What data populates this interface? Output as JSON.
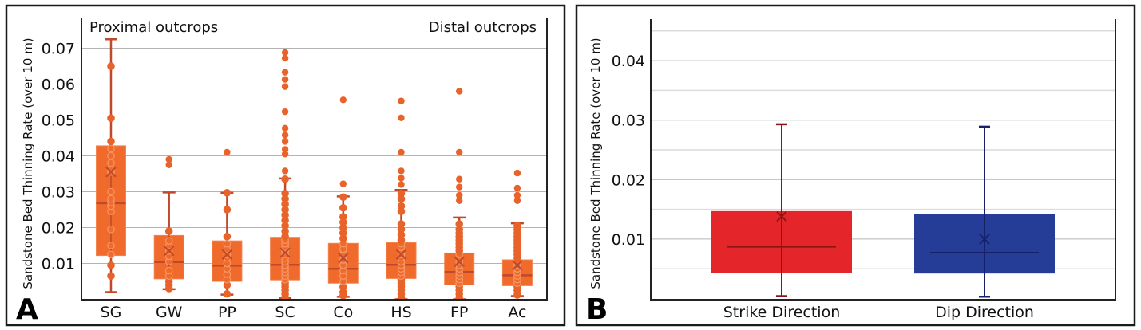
{
  "chart_data": [
    {
      "panel": "A",
      "type": "box",
      "ylabel": "Sandstone Bed Thinning Rate (over 10 m)",
      "ylim": [
        0,
        0.077
      ],
      "yticks": [
        "0.01",
        "0.02",
        "0.03",
        "0.04",
        "0.05",
        "0.06",
        "0.07"
      ],
      "ytick_values": [
        0.01,
        0.02,
        0.03,
        0.04,
        0.05,
        0.06,
        0.07
      ],
      "grid": true,
      "annotations": {
        "left": "Proximal outcrops",
        "right": "Distal outcrops"
      },
      "colors": {
        "fill": "#EF6A2B",
        "line": "#C0492B",
        "point": "#E8632A"
      },
      "categories": [
        "SG",
        "GW",
        "PP",
        "SC",
        "Co",
        "HS",
        "FP",
        "Ac"
      ],
      "series": [
        {
          "name": "SG",
          "whisker_low": 0.002,
          "q1": 0.0122,
          "median": 0.0268,
          "q3": 0.0428,
          "whisker_high": 0.0725,
          "mean": 0.0355,
          "points": [
            0.0065,
            0.0095,
            0.0125,
            0.015,
            0.0195,
            0.0245,
            0.026,
            0.027,
            0.028,
            0.03,
            0.0355,
            0.036,
            0.038,
            0.04,
            0.042,
            0.044,
            0.0505,
            0.065
          ],
          "outliers": []
        },
        {
          "name": "GW",
          "whisker_low": 0.0028,
          "q1": 0.0057,
          "median": 0.0104,
          "q3": 0.0178,
          "whisker_high": 0.0298,
          "mean": 0.0135,
          "points": [
            0.003,
            0.004,
            0.005,
            0.0065,
            0.008,
            0.0105,
            0.012,
            0.0135,
            0.015,
            0.0163,
            0.019
          ],
          "outliers": [
            0.0375,
            0.039
          ]
        },
        {
          "name": "PP",
          "whisker_low": 0.0013,
          "q1": 0.005,
          "median": 0.0094,
          "q3": 0.0163,
          "whisker_high": 0.0297,
          "mean": 0.0125,
          "points": [
            0.0015,
            0.004,
            0.0055,
            0.007,
            0.0085,
            0.01,
            0.0115,
            0.0125,
            0.014,
            0.0155,
            0.0175,
            0.025,
            0.0297
          ],
          "outliers": [
            0.041
          ]
        },
        {
          "name": "SC",
          "whisker_low": 0.0004,
          "q1": 0.0054,
          "median": 0.0096,
          "q3": 0.0173,
          "whisker_high": 0.0337,
          "mean": 0.013,
          "points": [
            0.0005,
            0.0015,
            0.0025,
            0.0035,
            0.0045,
            0.0055,
            0.0065,
            0.0075,
            0.0085,
            0.0095,
            0.0105,
            0.0115,
            0.0125,
            0.0135,
            0.0145,
            0.0155,
            0.0165,
            0.0175,
            0.019,
            0.0205,
            0.022,
            0.0235,
            0.025,
            0.0265,
            0.028,
            0.0295,
            0.0335
          ],
          "outliers": [
            0.0358,
            0.0405,
            0.0418,
            0.044,
            0.0458,
            0.0477,
            0.0523,
            0.0593,
            0.0613,
            0.0633,
            0.0672,
            0.0688
          ]
        },
        {
          "name": "Co",
          "whisker_low": 0.0007,
          "q1": 0.0045,
          "median": 0.0085,
          "q3": 0.0156,
          "whisker_high": 0.0287,
          "mean": 0.0115,
          "points": [
            0.001,
            0.002,
            0.0035,
            0.005,
            0.0065,
            0.008,
            0.0095,
            0.011,
            0.0125,
            0.014,
            0.0155,
            0.017,
            0.0185,
            0.02,
            0.0215,
            0.023,
            0.0255,
            0.0285
          ],
          "outliers": [
            0.0322,
            0.0556
          ]
        },
        {
          "name": "HS",
          "whisker_low": 0.0,
          "q1": 0.0058,
          "median": 0.0096,
          "q3": 0.0158,
          "whisker_high": 0.0305,
          "mean": 0.0125,
          "points": [
            0.0005,
            0.0015,
            0.0025,
            0.0035,
            0.0045,
            0.0055,
            0.0065,
            0.0075,
            0.0085,
            0.0095,
            0.0105,
            0.0115,
            0.0125,
            0.0135,
            0.0145,
            0.0155,
            0.0165,
            0.018,
            0.0195,
            0.021,
            0.0245,
            0.026,
            0.028,
            0.0295
          ],
          "outliers": [
            0.032,
            0.0338,
            0.0358,
            0.041,
            0.0506,
            0.0553
          ]
        },
        {
          "name": "FP",
          "whisker_low": 0.0,
          "q1": 0.004,
          "median": 0.0076,
          "q3": 0.0129,
          "whisker_high": 0.0228,
          "mean": 0.0105,
          "points": [
            0.0005,
            0.0015,
            0.0025,
            0.0035,
            0.0045,
            0.0055,
            0.0065,
            0.0075,
            0.0085,
            0.0095,
            0.0105,
            0.0115,
            0.0125,
            0.0135,
            0.0145,
            0.0155,
            0.0165,
            0.0175,
            0.0185,
            0.0195,
            0.021
          ],
          "outliers": [
            0.0275,
            0.029,
            0.0313,
            0.0335,
            0.041,
            0.058
          ]
        },
        {
          "name": "Ac",
          "whisker_low": 0.0009,
          "q1": 0.0038,
          "median": 0.0067,
          "q3": 0.011,
          "whisker_high": 0.0212,
          "mean": 0.0095,
          "points": [
            0.0012,
            0.0025,
            0.0035,
            0.0045,
            0.0055,
            0.0065,
            0.0075,
            0.0085,
            0.0095,
            0.0105,
            0.0115,
            0.0125,
            0.0135,
            0.0145,
            0.0155,
            0.0165,
            0.0175,
            0.0185,
            0.0195,
            0.0205
          ],
          "outliers": [
            0.0275,
            0.029,
            0.031,
            0.0352
          ]
        }
      ]
    },
    {
      "panel": "B",
      "type": "box",
      "ylabel": "Sandstone Bed Thinning Rate (over 10 m)",
      "ylim": [
        0,
        0.0465
      ],
      "yticks": [
        "0.01",
        "0.02",
        "0.03",
        "0.04"
      ],
      "ytick_values": [
        0.01,
        0.02,
        0.03,
        0.04
      ],
      "minor_grid_values": [
        0.005,
        0.015,
        0.025,
        0.035,
        0.045
      ],
      "grid": true,
      "categories": [
        "Strike Direction",
        "Dip Direction"
      ],
      "series": [
        {
          "name": "Strike Direction",
          "color": "#E4252A",
          "line": "#8B1414",
          "whisker_low": 0.0004,
          "q1": 0.0043,
          "median": 0.0087,
          "q3": 0.0147,
          "whisker_high": 0.0293,
          "mean": 0.0138
        },
        {
          "name": "Dip Direction",
          "color": "#263D98",
          "line": "#16216A",
          "whisker_low": 0.0003,
          "q1": 0.0042,
          "median": 0.0077,
          "q3": 0.0142,
          "whisker_high": 0.0289,
          "mean": 0.01
        }
      ]
    }
  ]
}
